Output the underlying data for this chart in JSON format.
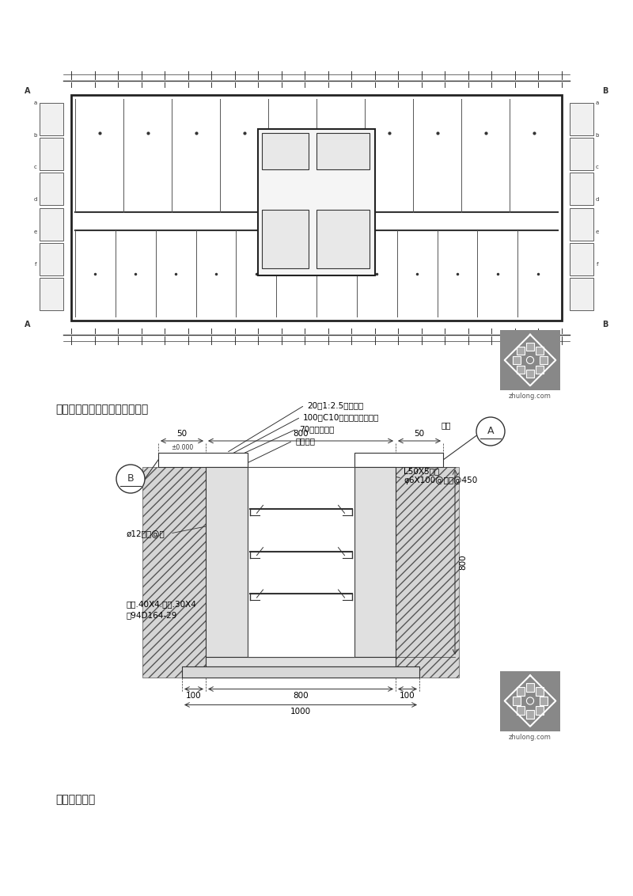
{
  "background_color": "#ffffff",
  "page_width": 8.0,
  "page_height": 11.32,
  "caption1": "四层产房，产科综合布线平面图",
  "caption2": "电缆沟大样图",
  "ann_20": "20厚1:2.5水泥砂浆",
  "ann_100": "100厚C10砼（配筋详结构）",
  "ann_70": "70厚碎石垫层",
  "ann_soil": "素土夯实",
  "ann_L50": "L50X5通长",
  "ann_phi6": "φ6X100@钢筋@450",
  "ann_phi12": "ø12钢筋@机",
  "ann_copper": "铜排.40X4.扁钢.30X4",
  "ann_copper2": "图94D164-29",
  "ann_cover": "盖板",
  "ann_zero": "±0.000"
}
